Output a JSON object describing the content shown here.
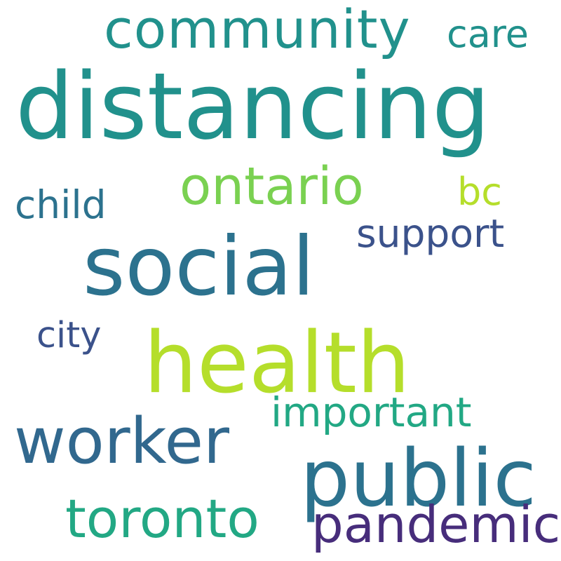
{
  "words": {
    "distancing": {
      "text": "distancing",
      "color": "#21918c"
    },
    "community": {
      "text": "community",
      "color": "#21918c"
    },
    "care": {
      "text": "care",
      "color": "#21918c"
    },
    "ontario": {
      "text": "ontario",
      "color": "#7ad151"
    },
    "bc": {
      "text": "bc",
      "color": "#b5de2b"
    },
    "child": {
      "text": "child",
      "color": "#2c728e"
    },
    "support": {
      "text": "support",
      "color": "#3b528b"
    },
    "social": {
      "text": "social",
      "color": "#2c728e"
    },
    "city": {
      "text": "city",
      "color": "#3b528b"
    },
    "health": {
      "text": "health",
      "color": "#b5de2b"
    },
    "important": {
      "text": "important",
      "color": "#22a884"
    },
    "worker": {
      "text": "worker",
      "color": "#31688e"
    },
    "public": {
      "text": "public",
      "color": "#2c728e"
    },
    "toronto": {
      "text": "toronto",
      "color": "#22a884"
    },
    "pandemic": {
      "text": "pandemic",
      "color": "#472d7b"
    }
  }
}
